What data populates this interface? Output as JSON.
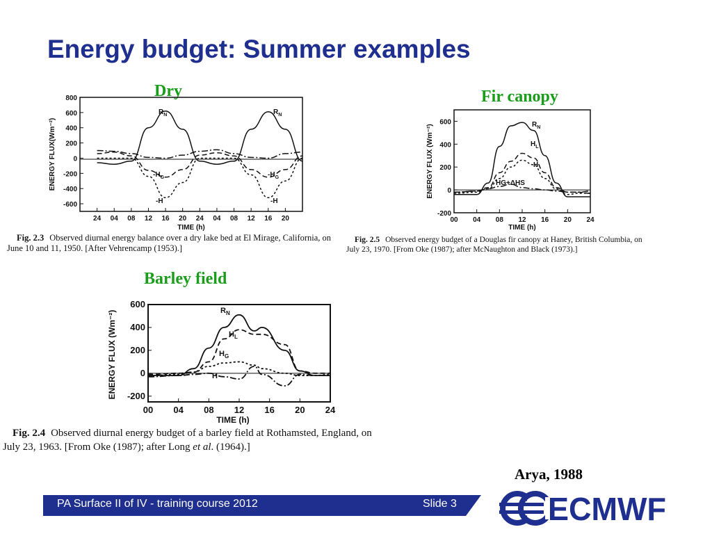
{
  "slide": {
    "title": "Energy budget: Summer examples",
    "credit": "Arya, 1988"
  },
  "panels": {
    "dry": {
      "heading": "Dry",
      "fig_label": "Fig. 2.3",
      "caption_line1": "Observed diurnal energy balance over a dry lake bed at El Mirage, California, on",
      "caption_line2": "June 10 and 11, 1950. [After Vehrencamp (1953).]",
      "ylabel": "ENERGY FLUX(Wm⁻²)",
      "xlabel": "TIME (h)",
      "curve_labels": {
        "rn": "R",
        "rn_sub": "N",
        "hg": "-H",
        "hg_sub": "G",
        "h": "-H"
      }
    },
    "fir": {
      "heading": "Fir canopy",
      "fig_label": "Fig. 2.5",
      "caption_line1": "Observed energy budget of a Douglas fir canopy at Haney, British Columbia, on",
      "caption_line2": "July 23, 1970. [From Oke (1987); after McNaughton and Black (1973).]",
      "ylabel": "ENERGY FLUX (Wm⁻²)",
      "xlabel": "TIME (h)",
      "curve_labels": {
        "rn": "R",
        "rn_sub": "N",
        "hl": "H",
        "hl_sub": "L",
        "h": "H",
        "hgs": "HG+ΔHS"
      }
    },
    "barley": {
      "heading": "Barley field",
      "fig_label": "Fig. 2.4",
      "caption_line1": "Observed diurnal energy budget of a barley field at Rothamsted, England, on",
      "caption_line2_a": "July 23, 1963. [From Oke (1987); after Long ",
      "caption_line2_b": "et al",
      "caption_line2_c": ". (1964).]",
      "ylabel": "ENERGY FLUX (Wm⁻²)",
      "xlabel": "TIME (h)",
      "curve_labels": {
        "rn": "R",
        "rn_sub": "N",
        "hl": "H",
        "hl_sub": "L",
        "hg": "H",
        "hg_sub": "G",
        "h": "H"
      }
    }
  },
  "footer": {
    "left": "PA Surface II of IV - training course 2012",
    "right": "Slide 3",
    "logo_text": "ECMWF"
  },
  "colors": {
    "title": "#1f2f8f",
    "heading": "#1a9d1a",
    "footer_bar": "#1f2f8f"
  },
  "chart_data": [
    {
      "type": "line",
      "id": "dry",
      "x_ticks": [
        "24",
        "04",
        "08",
        "12",
        "16",
        "20",
        "24",
        "04",
        "08",
        "12",
        "16",
        "20"
      ],
      "ylim": [
        -700,
        800
      ],
      "y_ticks": [
        800,
        600,
        400,
        200,
        0,
        -200,
        -400,
        -600
      ],
      "x": [
        20,
        24,
        28,
        32,
        36,
        40,
        44,
        48,
        52,
        56,
        60,
        64,
        68
      ],
      "series": [
        {
          "name": "RN",
          "values": [
            -60,
            -80,
            -40,
            400,
            620,
            380,
            -40,
            -80,
            -40,
            380,
            610,
            380,
            -40
          ]
        },
        {
          "name": "-HG",
          "values": [
            60,
            80,
            30,
            -160,
            -250,
            -150,
            40,
            70,
            30,
            -150,
            -250,
            -150,
            30
          ]
        },
        {
          "name": "-H",
          "values": [
            0,
            0,
            0,
            -240,
            -520,
            -320,
            0,
            0,
            0,
            -220,
            -520,
            -300,
            0
          ]
        },
        {
          "name": "",
          "values": [
            100,
            90,
            60,
            10,
            0,
            40,
            90,
            110,
            60,
            10,
            0,
            60,
            80
          ]
        }
      ]
    },
    {
      "type": "line",
      "id": "fir",
      "x_ticks": [
        "00",
        "04",
        "08",
        "12",
        "16",
        "20",
        "24"
      ],
      "ylim": [
        -200,
        700
      ],
      "y_ticks": [
        600,
        400,
        200,
        0,
        -200
      ],
      "x": [
        0,
        4,
        6,
        8,
        10,
        12,
        14,
        16,
        18,
        20,
        22,
        24
      ],
      "series": [
        {
          "name": "RN",
          "values": [
            -40,
            -40,
            60,
            380,
            560,
            590,
            520,
            300,
            60,
            -60,
            -60,
            -60
          ]
        },
        {
          "name": "HL",
          "values": [
            -20,
            -10,
            20,
            150,
            250,
            320,
            280,
            150,
            20,
            -20,
            -20,
            -30
          ]
        },
        {
          "name": "H",
          "values": [
            -30,
            -20,
            10,
            100,
            200,
            260,
            220,
            100,
            10,
            -40,
            -30,
            -30
          ]
        },
        {
          "name": "HG+ΔHS",
          "values": [
            -20,
            -10,
            10,
            30,
            50,
            20,
            10,
            0,
            -10,
            -20,
            -20,
            -10
          ]
        }
      ]
    },
    {
      "type": "line",
      "id": "barley",
      "x_ticks": [
        "00",
        "04",
        "08",
        "12",
        "16",
        "20",
        "24"
      ],
      "ylim": [
        -250,
        600
      ],
      "y_ticks": [
        600,
        400,
        200,
        0,
        -200
      ],
      "x": [
        0,
        4,
        6,
        8,
        10,
        12,
        14,
        15,
        18,
        20,
        22,
        24
      ],
      "series": [
        {
          "name": "RN",
          "values": [
            -20,
            -20,
            40,
            220,
            400,
            510,
            370,
            400,
            200,
            20,
            -20,
            -20
          ]
        },
        {
          "name": "HL",
          "values": [
            -10,
            0,
            10,
            100,
            300,
            380,
            340,
            340,
            250,
            20,
            0,
            0
          ]
        },
        {
          "name": "HG",
          "values": [
            -20,
            -10,
            10,
            60,
            90,
            100,
            70,
            40,
            0,
            -20,
            -20,
            -10
          ]
        },
        {
          "name": "H",
          "values": [
            -30,
            -20,
            -10,
            0,
            -30,
            -50,
            60,
            -10,
            -110,
            -10,
            -20,
            -20
          ]
        }
      ]
    }
  ]
}
